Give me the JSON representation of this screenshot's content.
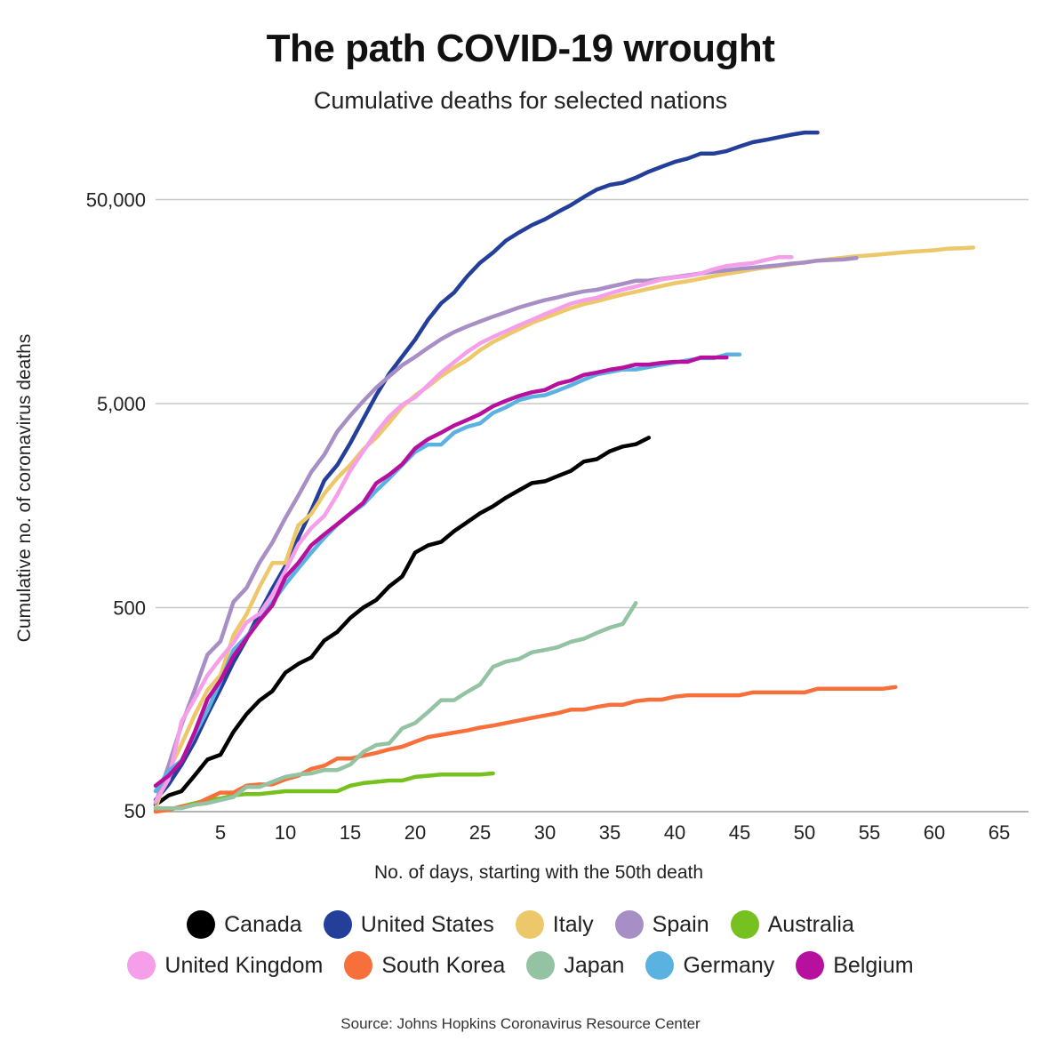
{
  "page": {
    "title": "The path COVID-19 wrought",
    "subtitle": "Cumulative deaths for selected nations",
    "source": "Source: Johns Hopkins Coronavirus Resource Center"
  },
  "chart_data": {
    "type": "line",
    "title": "The path COVID-19 wrought",
    "subtitle": "Cumulative deaths for selected nations",
    "xlabel": "No. of days, starting with the 50th death",
    "ylabel": "Cumulative no. of coronavirus deaths",
    "x_scale": "linear",
    "y_scale": "log",
    "xlim": [
      0,
      67
    ],
    "ylim": [
      50,
      140000
    ],
    "x_ticks": [
      5,
      10,
      15,
      20,
      25,
      30,
      35,
      40,
      45,
      50,
      55,
      60,
      65
    ],
    "x_tick_labels": [
      "5",
      "10",
      "15",
      "20",
      "25",
      "30",
      "35",
      "40",
      "45",
      "50",
      "55",
      "60",
      "65"
    ],
    "y_ticks": [
      50,
      500,
      5000,
      50000
    ],
    "y_tick_labels": [
      "50",
      "500",
      "5,000",
      "50,000"
    ],
    "grid": "horizontal",
    "legend_position": "bottom",
    "series": [
      {
        "name": "Canada",
        "color": "#000000",
        "x": [
          0,
          1,
          2,
          3,
          4,
          5,
          6,
          7,
          8,
          9,
          10,
          11,
          12,
          13,
          14,
          15,
          16,
          17,
          18,
          19,
          20,
          21,
          22,
          23,
          24,
          25,
          26,
          27,
          28,
          29,
          30,
          31,
          32,
          33,
          34,
          35,
          36,
          37,
          38
        ],
        "y": [
          54,
          60,
          63,
          75,
          90,
          95,
          123,
          150,
          175,
          195,
          240,
          265,
          285,
          345,
          380,
          445,
          500,
          545,
          635,
          710,
          930,
          1010,
          1050,
          1185,
          1310,
          1450,
          1570,
          1730,
          1880,
          2040,
          2080,
          2210,
          2340,
          2600,
          2670,
          2920,
          3080,
          3160,
          3400
        ]
      },
      {
        "name": "United States",
        "color": "#233f9a",
        "x": [
          0,
          1,
          2,
          3,
          4,
          5,
          6,
          7,
          8,
          9,
          10,
          11,
          12,
          13,
          14,
          15,
          16,
          17,
          18,
          19,
          20,
          21,
          22,
          23,
          24,
          25,
          26,
          27,
          28,
          29,
          30,
          31,
          32,
          33,
          34,
          35,
          36,
          37,
          38,
          39,
          40,
          41,
          42,
          43,
          44,
          45,
          46,
          47,
          48,
          49,
          50,
          51
        ],
        "y": [
          57,
          68,
          85,
          110,
          150,
          200,
          270,
          350,
          470,
          620,
          800,
          1100,
          1500,
          2100,
          2500,
          3200,
          4200,
          5500,
          7000,
          8500,
          10300,
          12900,
          15500,
          17500,
          21000,
          24500,
          27500,
          31500,
          34500,
          37500,
          40000,
          43500,
          47000,
          51500,
          56000,
          59000,
          60500,
          64000,
          68500,
          72500,
          76500,
          79500,
          84000,
          84000,
          86500,
          91000,
          95500,
          98000,
          101000,
          104000,
          106500,
          106500
        ]
      },
      {
        "name": "Italy",
        "color": "#ecc86b",
        "x": [
          0,
          1,
          2,
          3,
          4,
          5,
          6,
          7,
          8,
          9,
          10,
          11,
          12,
          13,
          14,
          15,
          16,
          17,
          18,
          19,
          20,
          21,
          22,
          23,
          24,
          25,
          26,
          27,
          28,
          29,
          30,
          31,
          32,
          33,
          34,
          35,
          36,
          37,
          38,
          39,
          40,
          41,
          42,
          43,
          44,
          45,
          46,
          47,
          48,
          49,
          50,
          51,
          52,
          53,
          54,
          55,
          56,
          57,
          58,
          59,
          60,
          61,
          62,
          63
        ],
        "y": [
          52,
          79,
          107,
          148,
          197,
          233,
          366,
          463,
          631,
          827,
          827,
          1266,
          1441,
          1809,
          2158,
          2503,
          2978,
          3405,
          4032,
          4825,
          5476,
          6077,
          6820,
          7503,
          8165,
          9134,
          10023,
          10779,
          11591,
          12428,
          13155,
          13915,
          14681,
          15362,
          15887,
          16523,
          17127,
          17669,
          18279,
          18849,
          19468,
          19899,
          20465,
          21067,
          21645,
          22170,
          22745,
          23227,
          23660,
          24114,
          24648,
          25085,
          25549,
          25969,
          26384,
          26644,
          26977,
          27359,
          27682,
          27967,
          28236,
          28710,
          28884,
          29079
        ]
      },
      {
        "name": "Spain",
        "color": "#a78ec4",
        "x": [
          0,
          1,
          2,
          3,
          4,
          5,
          6,
          7,
          8,
          9,
          10,
          11,
          12,
          13,
          14,
          15,
          16,
          17,
          18,
          19,
          20,
          21,
          22,
          23,
          24,
          25,
          26,
          27,
          28,
          29,
          30,
          31,
          32,
          33,
          34,
          35,
          36,
          37,
          38,
          39,
          40,
          41,
          42,
          43,
          44,
          45,
          46,
          47,
          48,
          49,
          50,
          51,
          52,
          53,
          54
        ],
        "y": [
          55,
          84,
          133,
          196,
          294,
          342,
          533,
          623,
          830,
          1043,
          1375,
          1772,
          2311,
          2808,
          3647,
          4365,
          5138,
          5982,
          6803,
          7716,
          8464,
          9387,
          10348,
          11198,
          11947,
          12641,
          13341,
          14045,
          14792,
          15447,
          16081,
          16606,
          17209,
          17756,
          18056,
          18708,
          19315,
          20002,
          20043,
          20453,
          20852,
          21282,
          21717,
          22157,
          22524,
          22902,
          23190,
          23521,
          23822,
          24275,
          24543,
          25100,
          25264,
          25428,
          25857
        ]
      },
      {
        "name": "Australia",
        "color": "#76c01f",
        "x": [
          0,
          1,
          2,
          3,
          4,
          5,
          6,
          7,
          8,
          9,
          10,
          11,
          12,
          13,
          14,
          15,
          16,
          17,
          18,
          19,
          20,
          21,
          22,
          23,
          24,
          25,
          26
        ],
        "y": [
          51,
          51,
          53,
          55,
          57,
          58,
          60,
          61,
          61,
          62,
          63,
          63,
          63,
          63,
          63,
          67,
          69,
          70,
          71,
          71,
          74,
          75,
          76,
          76,
          76,
          76,
          77
        ]
      },
      {
        "name": "United Kingdom",
        "color": "#f59ee9",
        "x": [
          0,
          1,
          2,
          3,
          4,
          5,
          6,
          7,
          8,
          9,
          10,
          11,
          12,
          13,
          14,
          15,
          16,
          17,
          18,
          19,
          20,
          21,
          22,
          23,
          24,
          25,
          26,
          27,
          28,
          29,
          30,
          31,
          32,
          33,
          34,
          35,
          36,
          37,
          38,
          39,
          40,
          41,
          42,
          43,
          44,
          45,
          46,
          47,
          48,
          49
        ],
        "y": [
          56,
          72,
          138,
          178,
          233,
          282,
          336,
          423,
          466,
          578,
          759,
          1019,
          1228,
          1408,
          1789,
          2352,
          2921,
          3605,
          4313,
          4934,
          5373,
          6159,
          7097,
          7978,
          8958,
          9875,
          10612,
          11329,
          12107,
          12868,
          13729,
          14576,
          15464,
          16060,
          16509,
          17337,
          18100,
          18738,
          19506,
          20319,
          20732,
          21092,
          21678,
          22792,
          23635,
          24055,
          24393,
          25302,
          26097,
          26097
        ]
      },
      {
        "name": "South Korea",
        "color": "#f7703b",
        "x": [
          0,
          1,
          2,
          3,
          4,
          5,
          6,
          7,
          8,
          9,
          10,
          11,
          12,
          13,
          14,
          15,
          16,
          17,
          18,
          19,
          20,
          21,
          22,
          23,
          24,
          25,
          26,
          27,
          28,
          29,
          30,
          31,
          32,
          33,
          34,
          35,
          36,
          37,
          38,
          39,
          40,
          41,
          42,
          43,
          44,
          45,
          46,
          47,
          48,
          49,
          50,
          51,
          52,
          53,
          54,
          55,
          56,
          57
        ],
        "y": [
          50,
          51,
          53,
          54,
          58,
          62,
          62,
          67,
          68,
          68,
          72,
          75,
          81,
          84,
          91,
          91,
          94,
          97,
          101,
          104,
          110,
          116,
          119,
          122,
          125,
          129,
          132,
          136,
          140,
          144,
          148,
          152,
          158,
          158,
          163,
          167,
          167,
          174,
          177,
          177,
          183,
          186,
          186,
          186,
          186,
          186,
          192,
          192,
          192,
          192,
          192,
          200,
          200,
          200,
          200,
          200,
          200,
          204
        ]
      },
      {
        "name": "Japan",
        "color": "#93c3a3",
        "x": [
          0,
          1,
          2,
          3,
          4,
          5,
          6,
          7,
          8,
          9,
          10,
          11,
          12,
          13,
          14,
          15,
          16,
          17,
          18,
          19,
          20,
          21,
          22,
          23,
          24,
          25,
          26,
          27,
          28,
          29,
          30,
          31,
          32,
          33,
          34,
          35,
          36,
          37
        ],
        "y": [
          52,
          52,
          52,
          54,
          55,
          57,
          59,
          66,
          66,
          70,
          74,
          76,
          77,
          80,
          80,
          85,
          98,
          106,
          108,
          128,
          136,
          154,
          176,
          176,
          193,
          210,
          256,
          272,
          280,
          302,
          310,
          320,
          340,
          352,
          376,
          399,
          416,
          527
        ]
      },
      {
        "name": "Germany",
        "color": "#5bb2e0",
        "x": [
          0,
          1,
          2,
          3,
          4,
          5,
          6,
          7,
          8,
          9,
          10,
          11,
          12,
          13,
          14,
          15,
          16,
          17,
          18,
          19,
          20,
          21,
          22,
          23,
          24,
          25,
          26,
          27,
          28,
          29,
          30,
          31,
          32,
          33,
          34,
          35,
          36,
          37,
          38,
          39,
          40,
          41,
          42,
          43,
          44,
          45
        ],
        "y": [
          63,
          79,
          89,
          119,
          157,
          217,
          310,
          360,
          430,
          530,
          650,
          780,
          930,
          1100,
          1275,
          1440,
          1600,
          1870,
          2150,
          2500,
          2900,
          3150,
          3150,
          3600,
          3850,
          4000,
          4500,
          4800,
          5200,
          5400,
          5500,
          5800,
          6150,
          6550,
          6950,
          7150,
          7350,
          7350,
          7550,
          7750,
          7950,
          8150,
          8350,
          8350,
          8700,
          8700
        ]
      },
      {
        "name": "Belgium",
        "color": "#b8109e",
        "x": [
          0,
          1,
          2,
          3,
          4,
          5,
          6,
          7,
          8,
          9,
          10,
          11,
          12,
          13,
          14,
          15,
          16,
          17,
          18,
          19,
          20,
          21,
          22,
          23,
          24,
          25,
          26,
          27,
          28,
          29,
          30,
          31,
          32,
          33,
          34,
          35,
          36,
          37,
          38,
          39,
          40,
          41,
          42,
          43,
          44
        ],
        "y": [
          67,
          75,
          88,
          122,
          178,
          220,
          289,
          353,
          431,
          513,
          705,
          828,
          1011,
          1143,
          1283,
          1447,
          1632,
          2035,
          2240,
          2523,
          3019,
          3346,
          3600,
          3903,
          4157,
          4440,
          4857,
          5163,
          5453,
          5683,
          5828,
          6262,
          6490,
          6917,
          7094,
          7331,
          7501,
          7765,
          7765,
          7924,
          8016,
          8016,
          8415,
          8415,
          8415
        ]
      }
    ]
  }
}
